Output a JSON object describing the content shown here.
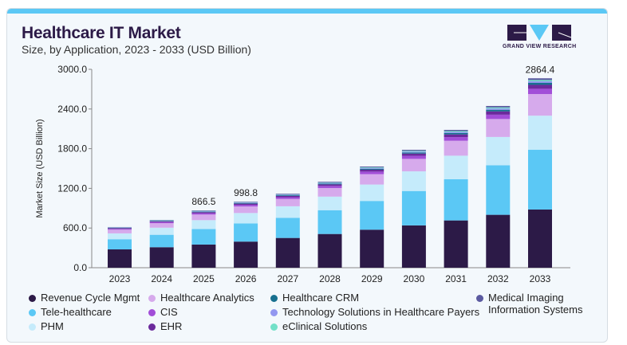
{
  "header": {
    "title": "Healthcare IT Market",
    "subtitle": "Size, by Application, 2023 - 2033 (USD Billion)",
    "logo_text": "GRAND VIEW RESEARCH"
  },
  "chart_data": {
    "type": "bar",
    "stacked": true,
    "title": "Healthcare IT Market",
    "subtitle": "Size, by Application, 2023 - 2033 (USD Billion)",
    "xlabel": "",
    "ylabel": "Market Size (USD Billion)",
    "ylim": [
      0,
      3000
    ],
    "yticks": [
      "0.0",
      "600.0",
      "1200.0",
      "1800.0",
      "2400.0",
      "3000.0"
    ],
    "categories": [
      "2023",
      "2024",
      "2025",
      "2026",
      "2027",
      "2028",
      "2029",
      "2030",
      "2031",
      "2032",
      "2033"
    ],
    "series": [
      {
        "name": "Revenue Cycle Mgmt",
        "color": "#2c1a47",
        "values": [
          277,
          310,
          350,
          395,
          450,
          510,
          575,
          640,
          715,
          800,
          880
        ]
      },
      {
        "name": "Tele-healthcare",
        "color": "#5bc8f5",
        "values": [
          154,
          188,
          235,
          275,
          305,
          359.5,
          434.5,
          520,
          623,
          749,
          903
        ]
      },
      {
        "name": "PHM",
        "color": "#c5ebfb",
        "values": [
          88,
          107,
          134,
          157,
          174,
          205.4,
          248.3,
          297.2,
          356,
          428,
          516
        ]
      },
      {
        "name": "Healthcare Analytics",
        "color": "#d6aaec",
        "values": [
          56,
          68,
          85,
          99.6,
          110.6,
          130.4,
          157.6,
          188.6,
          225.9,
          271.6,
          327.4
        ]
      },
      {
        "name": "CIS",
        "color": "#a24ed8",
        "values": [
          13.5,
          16.5,
          20.7,
          24.2,
          26.8,
          31.6,
          38.2,
          45.7,
          54.8,
          65.8,
          79.4
        ]
      },
      {
        "name": "EHR",
        "color": "#6b2a9c",
        "values": [
          10,
          12.4,
          15.5,
          18.1,
          20.1,
          23.7,
          28.7,
          34.3,
          41.1,
          49.4,
          59.5
        ]
      },
      {
        "name": "Healthcare CRM",
        "color": "#17708f",
        "values": [
          5,
          6.2,
          7.7,
          9.1,
          10,
          11.9,
          14.3,
          17.1,
          20.5,
          24.7,
          29.8
        ]
      },
      {
        "name": "Technology Solutions in Healthcare Payers",
        "color": "#9297f0",
        "values": [
          4,
          5,
          6.2,
          7.2,
          8,
          9.5,
          11.5,
          13.7,
          16.4,
          19.8,
          23.8
        ]
      },
      {
        "name": "eClinical Solutions",
        "color": "#72e0c8",
        "values": [
          3.4,
          4.1,
          5.2,
          6,
          6.7,
          7.9,
          9.6,
          11.4,
          13.7,
          16.5,
          19.8
        ]
      },
      {
        "name": "Medical Imaging Information Systems",
        "color": "#5b5aa0",
        "values": [
          4.1,
          5.8,
          7.2,
          7.6,
          8.8,
          10.1,
          12.3,
          15,
          17.6,
          21.2,
          25.7
        ]
      }
    ],
    "data_labels": {
      "2025": "866.5",
      "2026": "998.8",
      "2033": "2864.4"
    },
    "legend_position": "bottom",
    "legend": [
      {
        "label": "Revenue Cycle Mgmt",
        "color": "#2c1a47"
      },
      {
        "label": "Tele-healthcare",
        "color": "#5bc8f5"
      },
      {
        "label": "PHM",
        "color": "#c5ebfb"
      },
      {
        "label": "Healthcare Analytics",
        "color": "#d6aaec"
      },
      {
        "label": "CIS",
        "color": "#a24ed8"
      },
      {
        "label": "EHR",
        "color": "#6b2a9c"
      },
      {
        "label": "Healthcare CRM",
        "color": "#17708f"
      },
      {
        "label": "Technology Solutions in Healthcare Payers",
        "color": "#9297f0"
      },
      {
        "label": "eClinical Solutions",
        "color": "#72e0c8"
      },
      {
        "label": "Medical Imaging Information Systems",
        "color": "#5b5aa0"
      }
    ]
  }
}
